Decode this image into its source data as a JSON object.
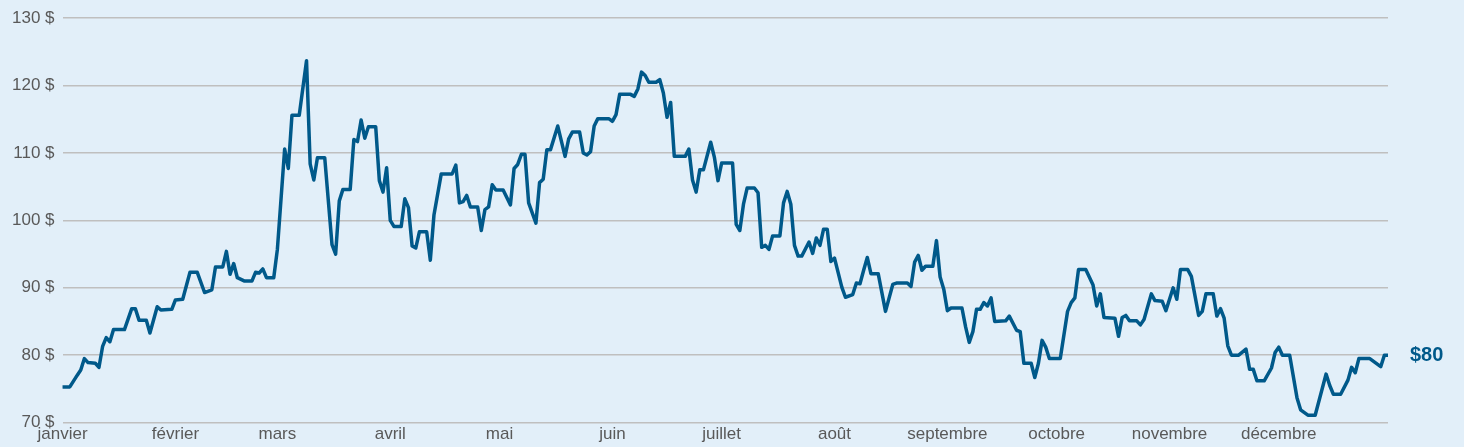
{
  "chart_data": {
    "type": "line",
    "color": "#00598a",
    "marker": "none",
    "line_style": "solid",
    "grid": "y",
    "legend": false,
    "x": [
      "--01-01",
      "--01-03",
      "--01-05",
      "--01-06",
      "--01-07",
      "--01-08",
      "--01-10",
      "--01-11",
      "--01-12",
      "--01-13",
      "--01-14",
      "--01-15",
      "--01-18",
      "--01-20",
      "--01-21",
      "--01-22",
      "--01-24",
      "--01-25",
      "--01-27",
      "--01-28",
      "--01-31",
      "--02-01",
      "--02-03",
      "--02-05",
      "--02-07",
      "--02-09",
      "--02-11",
      "--02-12",
      "--02-14",
      "--02-15",
      "--02-16",
      "--02-17",
      "--02-18",
      "--02-20",
      "--02-22",
      "--02-23",
      "--02-24",
      "--02-25",
      "--02-26",
      "--02-28",
      "--03-01",
      "--03-03",
      "--03-04",
      "--03-05",
      "--03-07",
      "--03-09",
      "--03-10",
      "--03-11",
      "--03-12",
      "--03-14",
      "--03-16",
      "--03-17",
      "--03-18",
      "--03-19",
      "--03-21",
      "--03-22",
      "--03-23",
      "--03-24",
      "--03-25",
      "--03-26",
      "--03-28",
      "--03-29",
      "--03-30",
      "--03-31",
      "--04-01",
      "--04-02",
      "--04-04",
      "--04-05",
      "--04-06",
      "--04-07",
      "--04-08",
      "--04-09",
      "--04-11",
      "--04-12",
      "--04-13",
      "--04-15",
      "--04-18",
      "--04-19",
      "--04-20",
      "--04-21",
      "--04-22",
      "--04-23",
      "--04-25",
      "--04-26",
      "--04-27",
      "--04-28",
      "--04-29",
      "--04-30",
      "--05-02",
      "--05-04",
      "--05-05",
      "--05-06",
      "--05-07",
      "--05-08",
      "--05-09",
      "--05-11",
      "--05-12",
      "--05-13",
      "--05-14",
      "--05-15",
      "--05-17",
      "--05-19",
      "--05-20",
      "--05-21",
      "--05-23",
      "--05-24",
      "--05-25",
      "--05-26",
      "--05-27",
      "--05-28",
      "--05-31",
      "--06-01",
      "--06-02",
      "--06-03",
      "--06-06",
      "--06-07",
      "--06-08",
      "--06-09",
      "--06-10",
      "--06-11",
      "--06-13",
      "--06-14",
      "--06-15",
      "--06-16",
      "--06-17",
      "--06-18",
      "--06-21",
      "--06-22",
      "--06-23",
      "--06-24",
      "--06-25",
      "--06-26",
      "--06-28",
      "--06-29",
      "--06-30",
      "--07-01",
      "--07-04",
      "--07-05",
      "--07-06",
      "--07-07",
      "--07-08",
      "--07-10",
      "--07-11",
      "--07-12",
      "--07-13",
      "--07-14",
      "--07-15",
      "--07-17",
      "--07-18",
      "--07-19",
      "--07-20",
      "--07-21",
      "--07-22",
      "--07-23",
      "--07-25",
      "--07-26",
      "--07-27",
      "--07-28",
      "--07-29",
      "--07-30",
      "--07-31",
      "--08-01",
      "--08-03",
      "--08-04",
      "--08-06",
      "--08-07",
      "--08-08",
      "--08-09",
      "--08-10",
      "--08-11",
      "--08-13",
      "--08-15",
      "--08-17",
      "--08-18",
      "--08-21",
      "--08-22",
      "--08-23",
      "--08-24",
      "--08-25",
      "--08-26",
      "--08-28",
      "--08-29",
      "--08-30",
      "--08-31",
      "--09-01",
      "--09-02",
      "--09-05",
      "--09-06",
      "--09-07",
      "--09-08",
      "--09-09",
      "--09-10",
      "--09-11",
      "--09-12",
      "--09-13",
      "--09-14",
      "--09-17",
      "--09-18",
      "--09-20",
      "--09-21",
      "--09-22",
      "--09-24",
      "--09-25",
      "--09-26",
      "--09-27",
      "--09-28",
      "--09-29",
      "--10-02",
      "--10-04",
      "--10-05",
      "--10-06",
      "--10-07",
      "--10-09",
      "--10-11",
      "--10-12",
      "--10-13",
      "--10-14",
      "--10-17",
      "--10-18",
      "--10-19",
      "--10-20",
      "--10-21",
      "--10-23",
      "--10-24",
      "--10-25",
      "--10-27",
      "--10-28",
      "--10-30",
      "--10-31",
      "--11-02",
      "--11-03",
      "--11-04",
      "--11-06",
      "--11-07",
      "--11-09",
      "--11-10",
      "--11-11",
      "--11-13",
      "--11-14",
      "--11-15",
      "--11-16",
      "--11-17",
      "--11-18",
      "--11-20",
      "--11-22",
      "--11-23",
      "--11-24",
      "--11-25",
      "--11-27",
      "--11-29",
      "--11-30",
      "--12-01",
      "--12-02",
      "--12-04",
      "--12-06",
      "--12-07",
      "--12-09",
      "--12-11",
      "--12-14",
      "--12-15",
      "--12-16",
      "--12-18",
      "--12-20",
      "--12-21",
      "--12-22",
      "--12-23",
      "--12-26",
      "--12-29",
      "--12-30",
      "--12-31"
    ],
    "values": [
      75.3,
      75.3,
      77.0,
      77.8,
      79.5,
      78.9,
      78.8,
      78.2,
      81.3,
      82.6,
      82.0,
      83.8,
      83.8,
      86.9,
      86.9,
      85.2,
      85.2,
      83.3,
      87.2,
      86.7,
      86.8,
      88.2,
      88.3,
      92.3,
      92.3,
      89.3,
      89.7,
      93.1,
      93.1,
      95.4,
      92.0,
      93.6,
      91.5,
      91.0,
      91.0,
      92.3,
      92.2,
      92.8,
      91.5,
      91.5,
      95.7,
      110.6,
      107.7,
      115.6,
      115.6,
      123.7,
      108.4,
      106.0,
      109.3,
      109.3,
      96.4,
      95.0,
      102.9,
      104.6,
      104.6,
      112.0,
      111.7,
      114.9,
      112.2,
      113.9,
      113.9,
      105.9,
      104.2,
      107.8,
      100.0,
      99.1,
      99.1,
      103.2,
      101.9,
      96.2,
      95.9,
      98.3,
      98.3,
      94.1,
      100.8,
      106.9,
      106.9,
      108.2,
      102.6,
      102.8,
      103.7,
      102.0,
      102.0,
      98.5,
      101.6,
      102.0,
      105.3,
      104.5,
      104.5,
      102.3,
      107.7,
      108.3,
      109.8,
      109.8,
      102.6,
      99.6,
      105.6,
      106.1,
      110.5,
      110.5,
      114.0,
      109.5,
      112.1,
      113.1,
      113.1,
      110.0,
      109.7,
      110.2,
      114.0,
      115.1,
      115.1,
      114.7,
      115.7,
      118.7,
      118.7,
      118.4,
      119.5,
      122.0,
      121.5,
      120.5,
      120.5,
      120.9,
      118.9,
      115.3,
      117.5,
      109.5,
      109.5,
      110.6,
      106.0,
      104.2,
      107.5,
      107.5,
      111.6,
      109.4,
      105.9,
      108.5,
      108.5,
      99.4,
      98.5,
      102.4,
      104.8,
      104.8,
      104.1,
      96.0,
      96.3,
      95.7,
      97.7,
      97.7,
      102.6,
      104.3,
      102.4,
      96.3,
      94.7,
      94.7,
      96.8,
      95.1,
      97.4,
      96.3,
      98.7,
      98.7,
      93.9,
      94.4,
      90.1,
      88.6,
      89.0,
      90.7,
      90.6,
      92.6,
      94.5,
      92.1,
      92.1,
      86.5,
      90.5,
      90.7,
      90.7,
      90.2,
      93.8,
      94.8,
      92.6,
      93.2,
      93.2,
      97.0,
      91.6,
      89.8,
      86.6,
      87.0,
      87.0,
      84.2,
      81.9,
      83.5,
      86.8,
      86.8,
      87.8,
      87.3,
      88.5,
      85.0,
      85.1,
      85.8,
      83.7,
      83.5,
      78.8,
      78.8,
      76.7,
      78.8,
      82.2,
      81.2,
      79.5,
      79.5,
      86.5,
      87.8,
      88.5,
      92.7,
      92.7,
      90.4,
      87.3,
      89.1,
      85.6,
      85.5,
      82.8,
      85.6,
      85.9,
      85.1,
      85.1,
      84.5,
      85.3,
      89.1,
      88.1,
      88.0,
      86.6,
      90.0,
      88.3,
      92.7,
      92.7,
      91.7,
      85.9,
      86.5,
      89.1,
      89.1,
      85.8,
      86.9,
      85.5,
      81.4,
      80.0,
      80.0,
      80.9,
      77.9,
      77.9,
      76.2,
      76.2,
      78.1,
      80.4,
      81.2,
      80.0,
      80.0,
      73.7,
      71.9,
      71.1,
      71.1,
      77.2,
      75.5,
      74.2,
      74.2,
      76.3,
      78.2,
      77.4,
      79.5,
      79.5,
      78.3,
      80.0,
      80.0
    ],
    "xlim": [
      "--01-01",
      "--12-31"
    ],
    "xticks": [
      {
        "value": "--01-01",
        "label": "janvier"
      },
      {
        "value": "--02-01",
        "label": "février"
      },
      {
        "value": "--03-01",
        "label": "mars"
      },
      {
        "value": "--04-01",
        "label": "avril"
      },
      {
        "value": "--05-01",
        "label": "mai"
      },
      {
        "value": "--06-01",
        "label": "juin"
      },
      {
        "value": "--07-01",
        "label": "juillet"
      },
      {
        "value": "--08-01",
        "label": "août"
      },
      {
        "value": "--09-01",
        "label": "septembre"
      },
      {
        "value": "--10-01",
        "label": "octobre"
      },
      {
        "value": "--11-01",
        "label": "novembre"
      },
      {
        "value": "--12-01",
        "label": "décembre"
      }
    ],
    "ylim": [
      70,
      130
    ],
    "yticks": [
      {
        "value": 70,
        "label": "70 $"
      },
      {
        "value": 80,
        "label": "80 $"
      },
      {
        "value": 90,
        "label": "90 $"
      },
      {
        "value": 100,
        "label": "100 $"
      },
      {
        "value": 110,
        "label": "110 $"
      },
      {
        "value": 120,
        "label": "120 $"
      },
      {
        "value": 130,
        "label": "130 $"
      }
    ],
    "annotations": [
      {
        "text": "$80",
        "x": "--12-31",
        "y": 80.0
      }
    ]
  }
}
